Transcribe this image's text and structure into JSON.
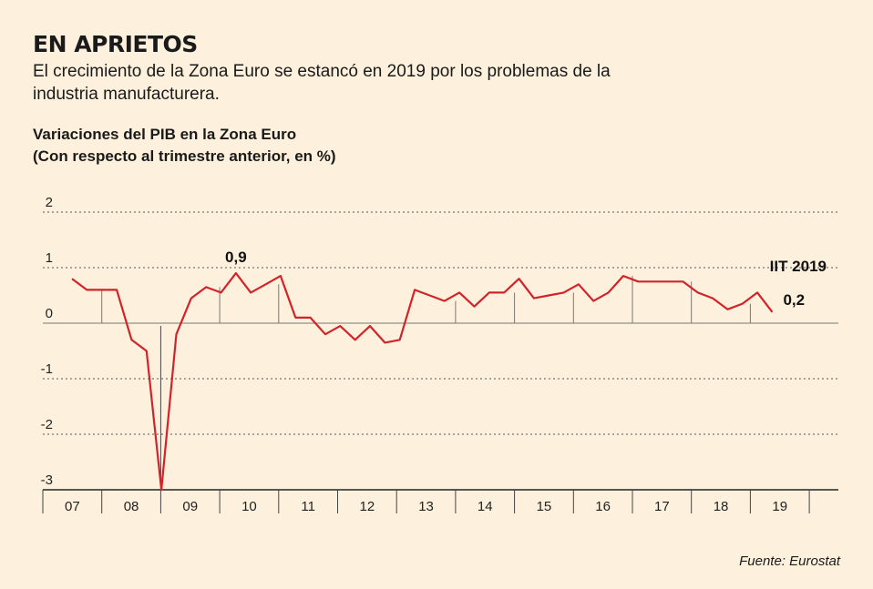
{
  "headline": "EN APRIETOS",
  "subtitle": "El crecimiento de la Zona Euro se estancó en 2019 por los problemas de la industria manufacturera.",
  "source": "Fuente: Eurostat",
  "chart_data": {
    "type": "line",
    "title": "Variaciones del PIB en la Zona Euro",
    "subtitle": "(Con respecto al trimestre anterior, en %)",
    "ylim": [
      -3,
      2
    ],
    "yticks": [
      2,
      1,
      0,
      -1,
      -2,
      -3
    ],
    "grid": "dashed horizontal",
    "years": [
      "07",
      "08",
      "09",
      "10",
      "11",
      "12",
      "13",
      "14",
      "15",
      "16",
      "17",
      "18",
      "19"
    ],
    "color": "#d2232a",
    "series": [
      {
        "values": [
          0.8,
          0.6,
          0.6,
          0.6,
          -0.3,
          -0.5,
          -3.0,
          -0.2,
          0.45,
          0.65,
          0.55,
          0.9,
          0.55,
          0.7,
          0.85,
          0.1,
          0.1,
          -0.2,
          -0.05,
          -0.3,
          -0.05,
          -0.35,
          -0.3,
          0.6,
          0.5,
          0.4,
          0.55,
          0.3,
          0.55,
          0.55,
          0.8,
          0.45,
          0.5,
          0.55,
          0.7,
          0.4,
          0.55,
          0.85,
          0.75,
          0.75,
          0.75,
          0.75,
          0.55,
          0.45,
          0.25,
          0.35,
          0.55,
          0.2
        ]
      }
    ],
    "annotations": [
      {
        "label": "0,9",
        "index": 11
      },
      {
        "label": "IIT 2019",
        "index": 47
      },
      {
        "label": "0,2",
        "index": 47
      }
    ]
  }
}
